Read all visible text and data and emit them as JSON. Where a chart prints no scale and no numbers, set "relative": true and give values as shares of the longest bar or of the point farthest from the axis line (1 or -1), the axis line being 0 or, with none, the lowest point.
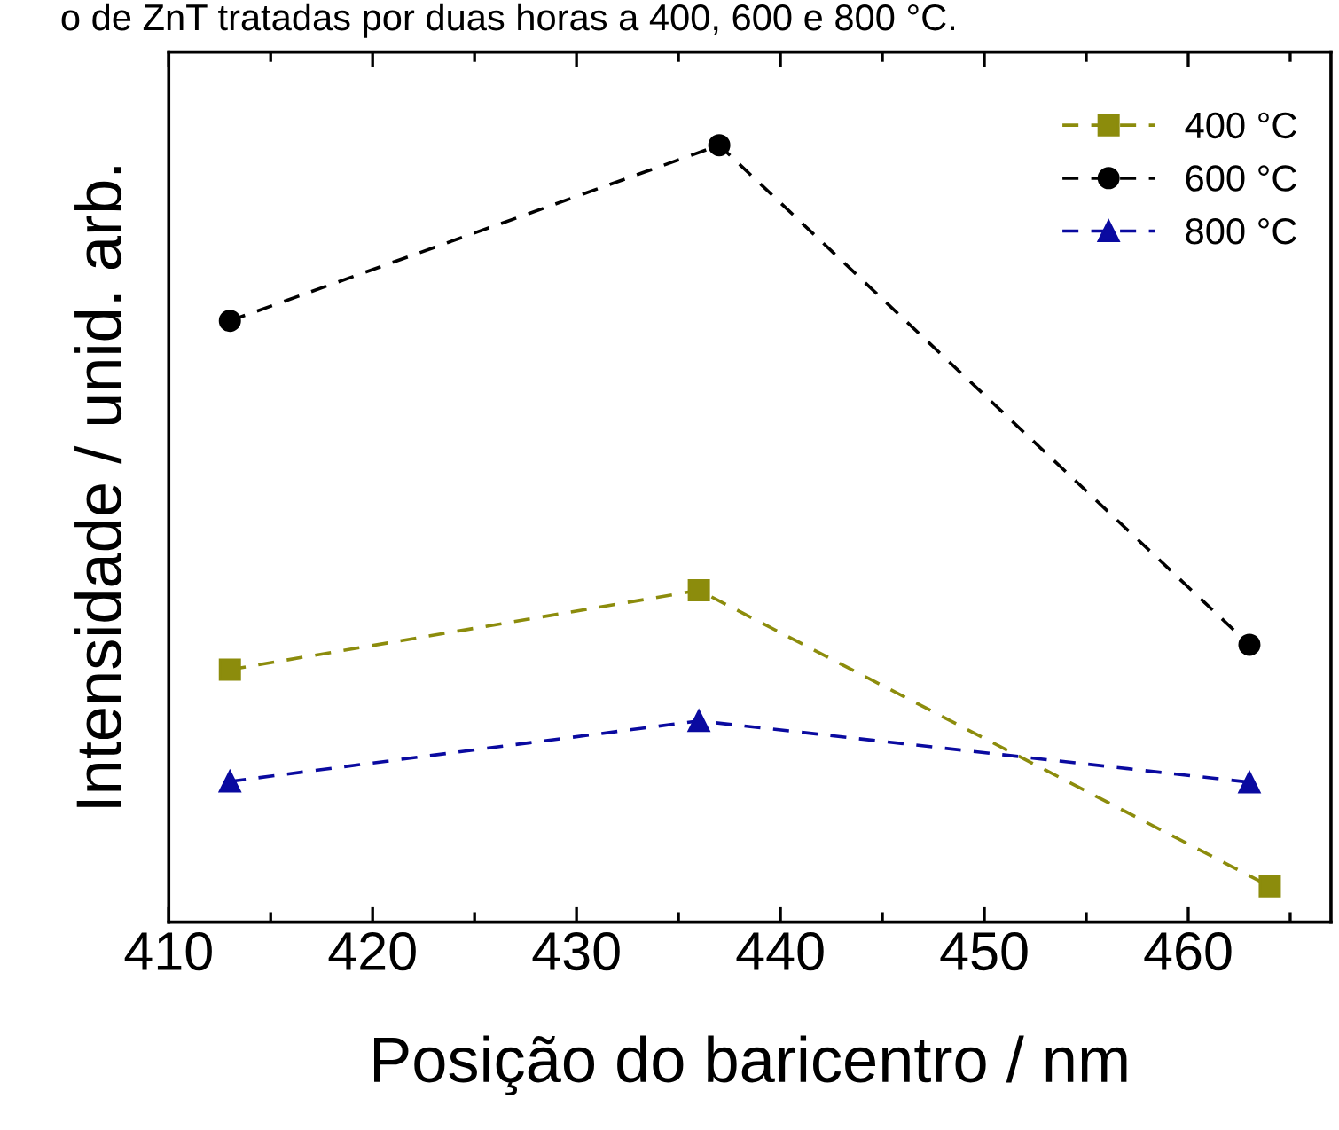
{
  "chart_data": {
    "type": "line",
    "title": "o de ZnT tratadas por duas horas a 400, 600 e 800 °C.",
    "xlabel": "Posição do baricentro / nm",
    "ylabel": "Intensidade / unid. arb.",
    "relative": true,
    "xlim": [
      410,
      467
    ],
    "xticks": [
      410,
      420,
      430,
      440,
      450,
      460
    ],
    "tick_labels": "x",
    "grid": false,
    "legend": "top right",
    "line_style": "dashed",
    "series": [
      {
        "name": "400 °C",
        "color": "#8c8c0c",
        "marker": "square",
        "x": [
          413,
          436,
          464
        ],
        "values": [
          0.325,
          0.427,
          0.046
        ]
      },
      {
        "name": "600 °C",
        "color": "#000000",
        "marker": "circle",
        "x": [
          413,
          437,
          463
        ],
        "values": [
          0.774,
          1,
          0.357
        ]
      },
      {
        "name": "800 °C",
        "color": "#0a0aa0",
        "marker": "triangle",
        "x": [
          413,
          436,
          463
        ],
        "values": [
          0.181,
          0.259,
          0.18
        ]
      }
    ]
  }
}
